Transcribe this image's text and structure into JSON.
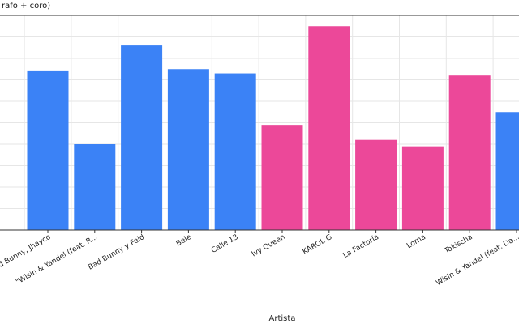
{
  "chart_data": {
    "type": "bar",
    "title": "rafo + coro)",
    "xlabel": "Artista",
    "ylabel": "",
    "ylim": [
      0,
      100
    ],
    "grid": true,
    "categories": [
      "Bad Bunny, Jhayco",
      "\"Wisin & Yandel (feat. R...",
      "Bad Bunny y Feid",
      "Bele",
      "Calle 13",
      "Ivy Queen",
      "KAROL G",
      "La Factoría",
      "Lorna",
      "Tokischa",
      "Wisin & Yandel (feat. Da..."
    ],
    "values": [
      74,
      40,
      86,
      75,
      73,
      49,
      95,
      42,
      39,
      72,
      55
    ],
    "bar_colors": [
      "#3b82f6",
      "#3b82f6",
      "#3b82f6",
      "#3b82f6",
      "#3b82f6",
      "#ec4899",
      "#ec4899",
      "#ec4899",
      "#ec4899",
      "#ec4899",
      "#3b82f6"
    ]
  }
}
